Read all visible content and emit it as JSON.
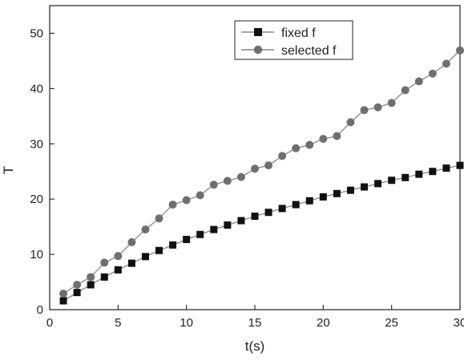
{
  "chart_data": {
    "type": "line",
    "title": "",
    "xlabel": "t(s)",
    "ylabel": "T",
    "xlim": [
      0,
      30
    ],
    "ylim": [
      0,
      55
    ],
    "xticks": [
      0,
      5,
      10,
      15,
      20,
      25,
      30
    ],
    "yticks": [
      0,
      10,
      20,
      30,
      40,
      50
    ],
    "grid": false,
    "legend_position": "top-right",
    "x": [
      1,
      2,
      3,
      4,
      5,
      6,
      7,
      8,
      9,
      10,
      11,
      12,
      13,
      14,
      15,
      16,
      17,
      18,
      19,
      20,
      21,
      22,
      23,
      24,
      25,
      26,
      27,
      28,
      29,
      30
    ],
    "series": [
      {
        "name": "fixed f",
        "marker": "square",
        "marker_color": "#111111",
        "line_color": "#888888",
        "values": [
          1.6,
          3.1,
          4.5,
          5.9,
          7.2,
          8.4,
          9.6,
          10.7,
          11.7,
          12.7,
          13.6,
          14.5,
          15.3,
          16.1,
          16.9,
          17.6,
          18.3,
          19.0,
          19.7,
          20.4,
          21.0,
          21.6,
          22.2,
          22.8,
          23.4,
          23.9,
          24.5,
          25.0,
          25.6,
          26.1
        ]
      },
      {
        "name": "selected f",
        "marker": "circle",
        "marker_color": "#6f6f6f",
        "line_color": "#888888",
        "values": [
          2.9,
          4.5,
          5.9,
          8.5,
          9.7,
          12.2,
          14.5,
          16.5,
          19.0,
          19.8,
          20.7,
          22.6,
          23.3,
          24.0,
          25.5,
          26.1,
          27.8,
          29.2,
          29.8,
          30.9,
          31.4,
          33.9,
          36.1,
          36.6,
          37.4,
          39.7,
          41.3,
          42.7,
          44.5,
          46.9
        ]
      }
    ]
  }
}
